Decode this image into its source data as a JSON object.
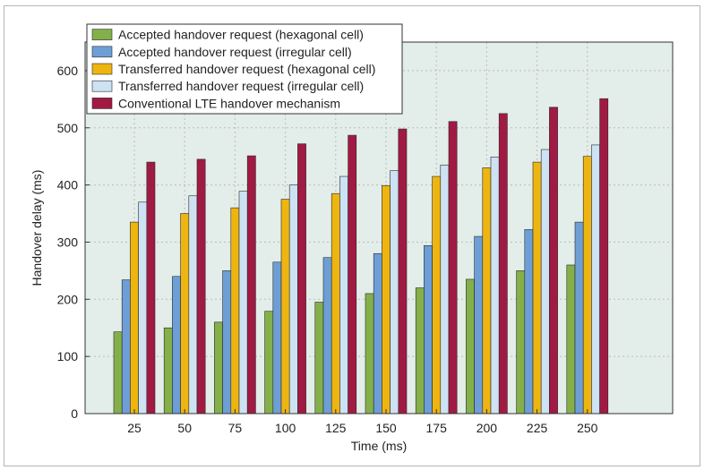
{
  "chart_data": {
    "type": "bar",
    "xlabel": "Time (ms)",
    "ylabel": "Handover delay (ms)",
    "ylim": [
      0,
      650
    ],
    "yticks": [
      0,
      100,
      200,
      300,
      400,
      500,
      600
    ],
    "grid": true,
    "legend_position": "top-left",
    "plot_background": "#e3ede9",
    "categories": [
      "25",
      "50",
      "75",
      "100",
      "125",
      "150",
      "175",
      "200",
      "225",
      "250"
    ],
    "series": [
      {
        "name": "Accepted handover request (hexagonal cell)",
        "color": "#84b04a",
        "values": [
          143,
          150,
          160,
          179,
          195,
          210,
          220,
          235,
          250,
          260
        ]
      },
      {
        "name": "Accepted handover request (irregular cell)",
        "color": "#6d9fd6",
        "values": [
          234,
          240,
          250,
          265,
          273,
          280,
          294,
          310,
          322,
          335
        ]
      },
      {
        "name": "Transferred handover request (hexagonal cell)",
        "color": "#eeb511",
        "values": [
          335,
          350,
          360,
          375,
          385,
          399,
          415,
          430,
          440,
          450
        ]
      },
      {
        "name": "Transferred handover request (irregular cell)",
        "color": "#cde2f3",
        "values": [
          370,
          381,
          389,
          400,
          415,
          425,
          435,
          449,
          462,
          470
        ]
      },
      {
        "name": "Conventional LTE handover mechanism",
        "color": "#a11a43",
        "values": [
          440,
          445,
          451,
          472,
          487,
          498,
          511,
          525,
          536,
          551
        ]
      }
    ]
  }
}
